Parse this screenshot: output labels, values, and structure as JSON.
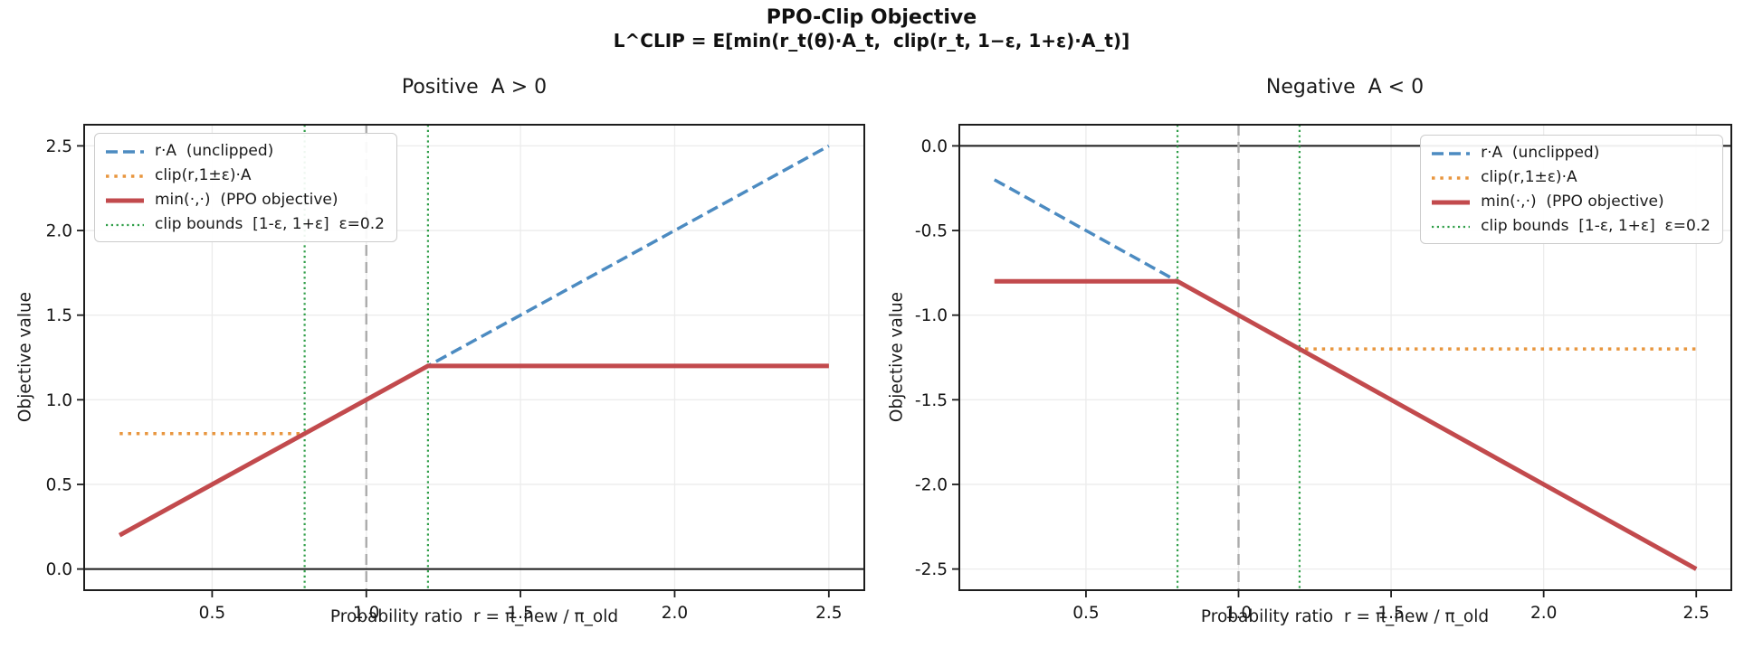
{
  "header": {
    "title": "PPO-Clip Objective",
    "formula": "L^CLIP = E[min(r_t(θ)·A_t,  clip(r_t, 1−ε, 1+ε)·A_t)]"
  },
  "colors": {
    "unclipped_blue": "#4c8bc1",
    "clipped_orange": "#e8963f",
    "ppo_red": "#c24a4d",
    "clip_bounds_green": "#2f9e48",
    "reference_gray": "#ababab",
    "zero_line": "#1a1a1a",
    "grid": "#ececec",
    "axis": "#1d1d1d"
  },
  "chart_data": [
    {
      "type": "line",
      "title": "Positive  A > 0",
      "xlabel": "Probability ratio  r = π_new / π_old",
      "ylabel": "Objective value",
      "xlim": [
        0.085,
        2.615
      ],
      "ylim": [
        -0.125,
        2.625
      ],
      "xticks": [
        0.5,
        1.0,
        1.5,
        2.0,
        2.5
      ],
      "xtick_labels": [
        "0.5",
        "1.0",
        "1.5",
        "2.0",
        "2.5"
      ],
      "yticks": [
        0.0,
        0.5,
        1.0,
        1.5,
        2.0,
        2.5
      ],
      "ytick_labels": [
        "0.0",
        "0.5",
        "1.0",
        "1.5",
        "2.0",
        "2.5"
      ],
      "grid": true,
      "legend_position": "upper-left",
      "epsilon": 0.2,
      "zero_hline_y": 0.0,
      "reference_vline_x": 1.0,
      "series": [
        {
          "key": "unclipped",
          "name": "r·A  (unclipped)",
          "style": "dashed",
          "width": 3.5,
          "color": "#4c8bc1",
          "points": [
            [
              0.2,
              0.2
            ],
            [
              2.5,
              2.5
            ]
          ]
        },
        {
          "key": "clipped",
          "name": "clip(r,1±ε)·A",
          "style": "dotted",
          "width": 3.5,
          "color": "#e8963f",
          "points": [
            [
              0.2,
              0.8
            ],
            [
              0.8,
              0.8
            ],
            [
              1.2,
              1.2
            ],
            [
              2.5,
              1.2
            ]
          ]
        },
        {
          "key": "ppo",
          "name": "min(·,·)  (PPO objective)",
          "style": "solid",
          "width": 5,
          "color": "#c24a4d",
          "points": [
            [
              0.2,
              0.2
            ],
            [
              1.2,
              1.2
            ],
            [
              2.5,
              1.2
            ]
          ]
        },
        {
          "key": "clip_bounds",
          "name": "clip bounds  [1-ε, 1+ε]  ε=0.2",
          "style": "dotted-fine",
          "width": 2.2,
          "color": "#2f9e48",
          "x_values": [
            0.8,
            1.2
          ]
        }
      ]
    },
    {
      "type": "line",
      "title": "Negative  A < 0",
      "xlabel": "Probability ratio  r = π_new / π_old",
      "ylabel": "Objective value",
      "xlim": [
        0.085,
        2.615
      ],
      "ylim": [
        -2.625,
        0.125
      ],
      "xticks": [
        0.5,
        1.0,
        1.5,
        2.0,
        2.5
      ],
      "xtick_labels": [
        "0.5",
        "1.0",
        "1.5",
        "2.0",
        "2.5"
      ],
      "yticks": [
        -2.5,
        -2.0,
        -1.5,
        -1.0,
        -0.5,
        0.0
      ],
      "ytick_labels": [
        "-2.5",
        "-2.0",
        "-1.5",
        "-1.0",
        "-0.5",
        "0.0"
      ],
      "grid": true,
      "legend_position": "upper-right",
      "epsilon": 0.2,
      "zero_hline_y": 0.0,
      "reference_vline_x": 1.0,
      "series": [
        {
          "key": "unclipped",
          "name": "r·A  (unclipped)",
          "style": "dashed",
          "width": 3.5,
          "color": "#4c8bc1",
          "points": [
            [
              0.2,
              -0.2
            ],
            [
              2.5,
              -2.5
            ]
          ]
        },
        {
          "key": "clipped",
          "name": "clip(r,1±ε)·A",
          "style": "dotted",
          "width": 3.5,
          "color": "#e8963f",
          "points": [
            [
              0.2,
              -0.8
            ],
            [
              0.8,
              -0.8
            ],
            [
              1.2,
              -1.2
            ],
            [
              2.5,
              -1.2
            ]
          ]
        },
        {
          "key": "ppo",
          "name": "min(·,·)  (PPO objective)",
          "style": "solid",
          "width": 5,
          "color": "#c24a4d",
          "points": [
            [
              0.2,
              -0.8
            ],
            [
              0.8,
              -0.8
            ],
            [
              2.5,
              -2.5
            ]
          ]
        },
        {
          "key": "clip_bounds",
          "name": "clip bounds  [1-ε, 1+ε]  ε=0.2",
          "style": "dotted-fine",
          "width": 2.2,
          "color": "#2f9e48",
          "x_values": [
            0.8,
            1.2
          ]
        }
      ]
    }
  ]
}
